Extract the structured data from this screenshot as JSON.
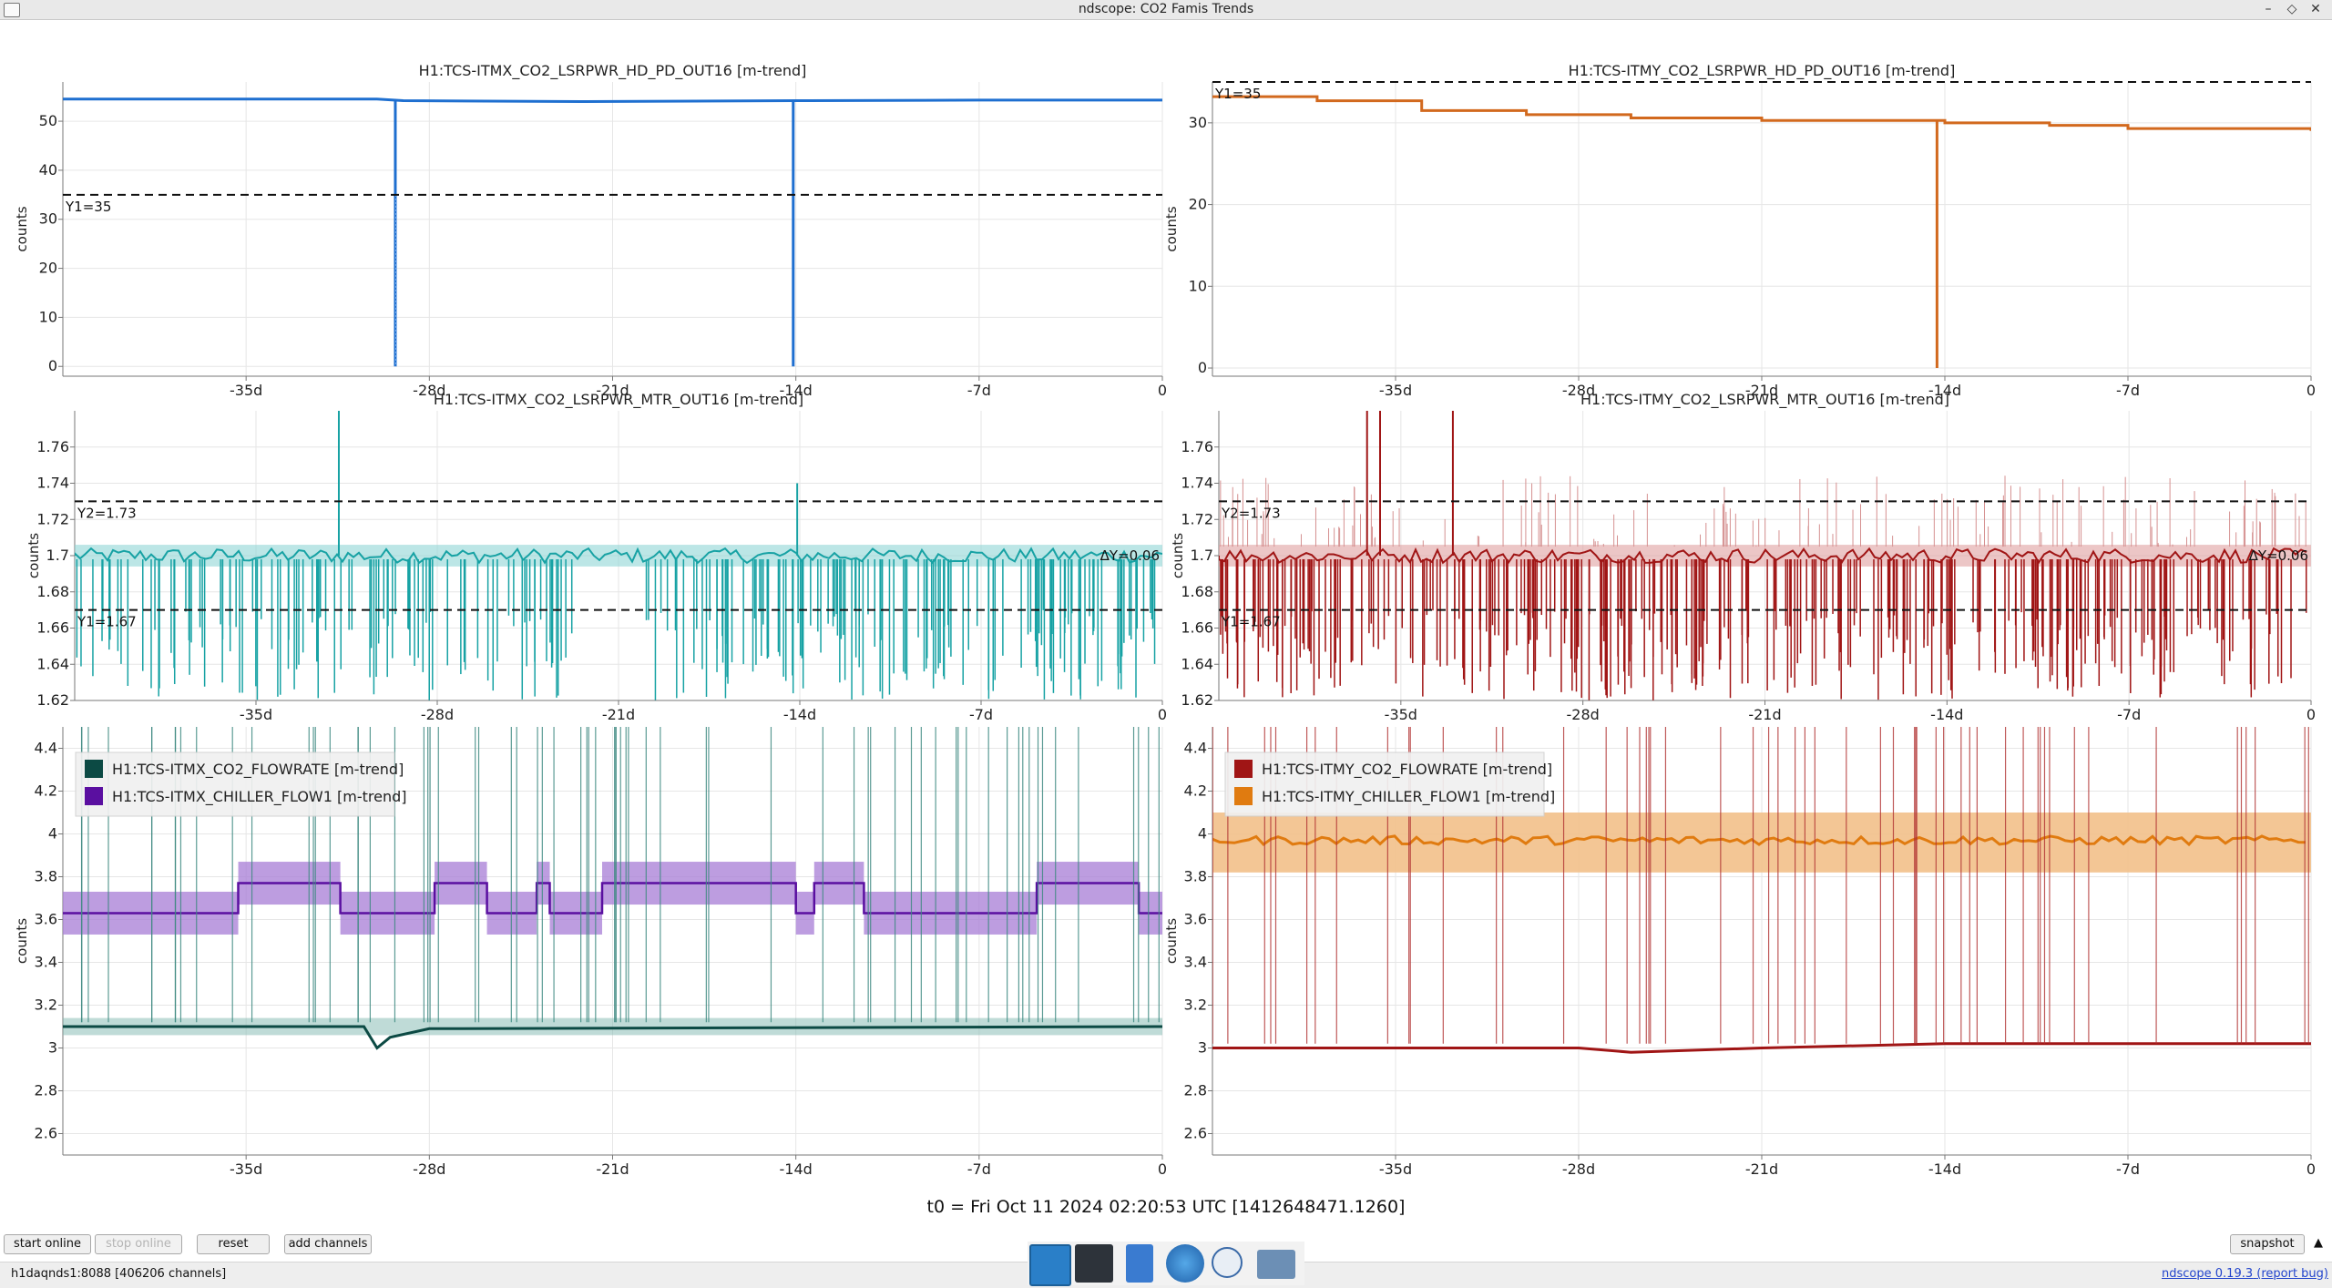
{
  "window": {
    "title": "ndscope: CO2 Famis Trends"
  },
  "axis": {
    "ylabel": "counts",
    "xticks": [
      {
        "d": -35,
        "label": "-35d"
      },
      {
        "d": -28,
        "label": "-28d"
      },
      {
        "d": -21,
        "label": "-21d"
      },
      {
        "d": -14,
        "label": "-14d"
      },
      {
        "d": -7,
        "label": "-7d"
      },
      {
        "d": 0,
        "label": "0"
      }
    ],
    "xrange_days": [
      -42,
      0
    ]
  },
  "plots": [
    {
      "id": "p1",
      "title": "H1:TCS-ITMX_CO2_LSRPWR_HD_PD_OUT16 [m-trend]",
      "ylim": [
        -2,
        58
      ],
      "yticks": [
        0,
        10,
        20,
        30,
        40,
        50
      ],
      "color": "#1e6fd0",
      "cursors": [
        {
          "y": 35,
          "label": "Y1=35"
        }
      ]
    },
    {
      "id": "p2",
      "title": "H1:TCS-ITMY_CO2_LSRPWR_HD_PD_OUT16 [m-trend]",
      "ylim": [
        -1,
        35
      ],
      "yticks": [
        0,
        10,
        20,
        30
      ],
      "color": "#d2691e",
      "cursors": [
        {
          "y": 35,
          "label": "Y1=35"
        }
      ]
    },
    {
      "id": "p3",
      "title": "H1:TCS-ITMX_CO2_LSRPWR_MTR_OUT16 [m-trend]",
      "ylim": [
        1.62,
        1.78
      ],
      "yticks": [
        1.62,
        1.64,
        1.66,
        1.68,
        1.7,
        1.72,
        1.74,
        1.76
      ],
      "yticklabels": [
        "1.62",
        "1.64",
        "1.66",
        "1.68",
        "1.7",
        "1.72",
        "1.74",
        "1.76"
      ],
      "color": "#17a2a4",
      "cursors": [
        {
          "y": 1.73,
          "label": "Y2=1.73"
        },
        {
          "y": 1.67,
          "label": "Y1=1.67"
        }
      ],
      "delta_label": "ΔY=0.06"
    },
    {
      "id": "p4",
      "title": "H1:TCS-ITMY_CO2_LSRPWR_MTR_OUT16 [m-trend]",
      "ylim": [
        1.62,
        1.78
      ],
      "yticks": [
        1.62,
        1.64,
        1.66,
        1.68,
        1.7,
        1.72,
        1.74,
        1.76
      ],
      "yticklabels": [
        "1.62",
        "1.64",
        "1.66",
        "1.68",
        "1.7",
        "1.72",
        "1.74",
        "1.76"
      ],
      "color": "#a01515",
      "cursors": [
        {
          "y": 1.73,
          "label": "Y2=1.73"
        },
        {
          "y": 1.67,
          "label": "Y1=1.67"
        }
      ],
      "delta_label": "ΔY=0.06"
    },
    {
      "id": "p5",
      "title": "",
      "ylim": [
        2.5,
        4.5
      ],
      "yticks": [
        2.6,
        2.8,
        3,
        3.2,
        3.4,
        3.6,
        3.8,
        4,
        4.2,
        4.4
      ],
      "yticklabels": [
        "2.6",
        "2.8",
        "3",
        "3.2",
        "3.4",
        "3.6",
        "3.8",
        "4",
        "4.2",
        "4.4"
      ],
      "legend": [
        {
          "name": "H1:TCS-ITMX_CO2_FLOWRATE [m-trend]",
          "color": "#0c4a44"
        },
        {
          "name": "H1:TCS-ITMX_CHILLER_FLOW1 [m-trend]",
          "color": "#5a0fa0"
        }
      ]
    },
    {
      "id": "p6",
      "title": "",
      "ylim": [
        2.5,
        4.5
      ],
      "yticks": [
        2.6,
        2.8,
        3,
        3.2,
        3.4,
        3.6,
        3.8,
        4,
        4.2,
        4.4
      ],
      "yticklabels": [
        "2.6",
        "2.8",
        "3",
        "3.2",
        "3.4",
        "3.6",
        "3.8",
        "4",
        "4.2",
        "4.4"
      ],
      "legend": [
        {
          "name": "H1:TCS-ITMY_CO2_FLOWRATE [m-trend]",
          "color": "#a01515"
        },
        {
          "name": "H1:TCS-ITMY_CHILLER_FLOW1 [m-trend]",
          "color": "#e07b10"
        }
      ]
    }
  ],
  "t0_text": "t0 = Fri Oct 11 2024 02:20:53 UTC [1412648471.1260]",
  "buttons": {
    "start_online": "start online",
    "stop_online": "stop online",
    "reset": "reset",
    "add_channels": "add channels",
    "snapshot": "snapshot"
  },
  "status": {
    "server": "h1daqnds1:8088 [406206 channels]",
    "version": "ndscope 0.19.3",
    "report": "(report bug)"
  },
  "chart_data": [
    {
      "type": "line",
      "title": "H1:TCS-ITMX_CO2_LSRPWR_HD_PD_OUT16 [m-trend]",
      "ylabel": "counts",
      "x_unit": "days relative to t0",
      "series": [
        {
          "name": "H1:TCS-ITMX_CO2_LSRPWR_HD_PD_OUT16 [m-trend]",
          "x": [
            -42,
            -30,
            -29,
            -22,
            -14,
            -7,
            0
          ],
          "values": [
            54.5,
            54.5,
            54.2,
            54.0,
            54.2,
            54.3,
            54.3
          ],
          "dips": [
            {
              "x": -29.3,
              "min": 0
            },
            {
              "x": -14.1,
              "min": 0
            }
          ]
        }
      ],
      "ylim": [
        -2,
        58
      ]
    },
    {
      "type": "line",
      "title": "H1:TCS-ITMY_CO2_LSRPWR_HD_PD_OUT16 [m-trend]",
      "ylabel": "counts",
      "x_unit": "days relative to t0",
      "series": [
        {
          "name": "H1:TCS-ITMY_CO2_LSRPWR_HD_PD_OUT16 [m-trend]",
          "x": [
            -42,
            -38,
            -34,
            -30,
            -26,
            -21,
            -14,
            -10,
            -7,
            0
          ],
          "values": [
            33.2,
            32.7,
            31.5,
            31.0,
            30.6,
            30.3,
            30.0,
            29.7,
            29.3,
            29.0
          ],
          "dips": [
            {
              "x": -14.3,
              "min": 0
            }
          ]
        }
      ],
      "ylim": [
        -1,
        35
      ]
    },
    {
      "type": "line",
      "title": "H1:TCS-ITMX_CO2_LSRPWR_MTR_OUT16 [m-trend]",
      "ylabel": "counts",
      "series": [
        {
          "name": "H1:TCS-ITMX_CO2_LSRPWR_MTR_OUT16 [m-trend]",
          "mean": 1.7,
          "min_range": [
            1.62,
            1.7
          ],
          "max": 1.78
        }
      ],
      "ylim": [
        1.62,
        1.78
      ]
    },
    {
      "type": "line",
      "title": "H1:TCS-ITMY_CO2_LSRPWR_MTR_OUT16 [m-trend]",
      "ylabel": "counts",
      "series": [
        {
          "name": "H1:TCS-ITMY_CO2_LSRPWR_MTR_OUT16 [m-trend]",
          "mean": 1.7,
          "min_range": [
            1.62,
            1.7
          ],
          "max": 1.78
        }
      ],
      "ylim": [
        1.62,
        1.78
      ]
    },
    {
      "type": "line",
      "ylabel": "counts",
      "series": [
        {
          "name": "H1:TCS-ITMX_CO2_FLOWRATE [m-trend]",
          "x": [
            -42,
            -30.5,
            -30,
            -29.5,
            -28,
            0
          ],
          "values": [
            3.1,
            3.1,
            3.0,
            3.05,
            3.09,
            3.1
          ]
        },
        {
          "name": "H1:TCS-ITMX_CHILLER_FLOW1 [m-trend]",
          "x": [
            -42,
            -35.3,
            -35.3,
            -31.4,
            -31.4,
            -27.8,
            -27.8,
            -25.8,
            -25.8,
            -23.9,
            -23.9,
            -23.4,
            -23.4,
            -21.4,
            -21.4,
            -14.0,
            -14.0,
            -13.3,
            -13.3,
            -11.4,
            -11.4,
            -4.8,
            -4.8,
            -0.9,
            -0.9,
            0
          ],
          "values": [
            3.63,
            3.63,
            3.77,
            3.77,
            3.63,
            3.63,
            3.77,
            3.77,
            3.63,
            3.63,
            3.77,
            3.77,
            3.63,
            3.63,
            3.77,
            3.77,
            3.63,
            3.63,
            3.77,
            3.77,
            3.63,
            3.63,
            3.77,
            3.77,
            3.63,
            3.63
          ]
        }
      ],
      "ylim": [
        2.5,
        4.5
      ]
    },
    {
      "type": "line",
      "ylabel": "counts",
      "series": [
        {
          "name": "H1:TCS-ITMY_CO2_FLOWRATE [m-trend]",
          "x": [
            -42,
            -28,
            -26,
            -21,
            -14,
            -7,
            0
          ],
          "values": [
            3.0,
            3.0,
            2.98,
            3.0,
            3.02,
            3.02,
            3.02
          ]
        },
        {
          "name": "H1:TCS-ITMY_CHILLER_FLOW1 [m-trend]",
          "x": [
            -42,
            0
          ],
          "values": [
            3.97,
            3.97
          ]
        }
      ],
      "ylim": [
        2.5,
        4.5
      ]
    }
  ]
}
